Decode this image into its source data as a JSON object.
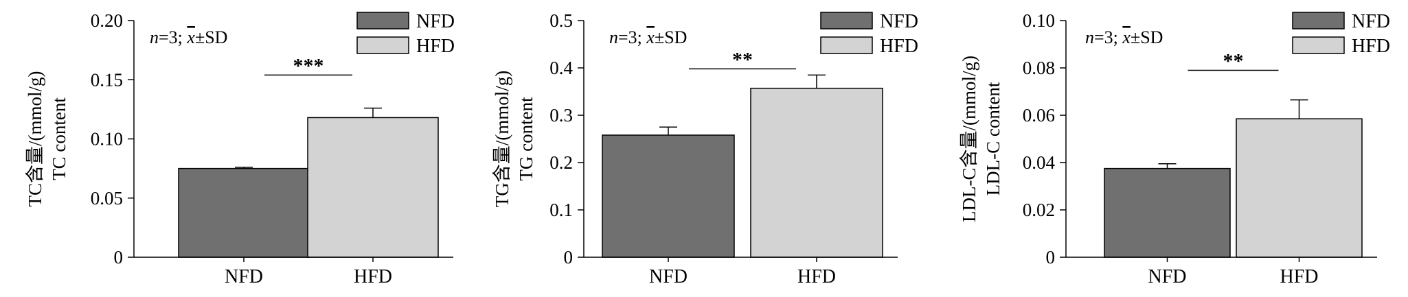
{
  "colors": {
    "NFD": "#707070",
    "HFD": "#d3d3d3",
    "axis": "#000000"
  },
  "chart_data": [
    {
      "type": "bar",
      "categories": [
        "NFD",
        "HFD"
      ],
      "values": [
        0.075,
        0.118
      ],
      "errors": [
        0.001,
        0.008
      ],
      "ylabel_cn": "TC含量/(mmol/g)",
      "ylabel_en": "TC content",
      "ylim": [
        0,
        0.2
      ],
      "yticks": [
        "0",
        "0.05",
        "0.10",
        "0.15",
        "0.20"
      ],
      "annotation_prefix": "n",
      "annotation_suffix": "=3; ",
      "annotation_stat": "x",
      "annotation_sd": "±SD",
      "significance": "***",
      "significance_y": 0.154,
      "legend": [
        "NFD",
        "HFD"
      ]
    },
    {
      "type": "bar",
      "categories": [
        "NFD",
        "HFD"
      ],
      "values": [
        0.258,
        0.357
      ],
      "errors": [
        0.017,
        0.028
      ],
      "ylabel_cn": "TG含量/(mmol/g)",
      "ylabel_en": "TG content",
      "ylim": [
        0,
        0.5
      ],
      "yticks": [
        "0",
        "0.1",
        "0.2",
        "0.3",
        "0.4",
        "0.5"
      ],
      "annotation_prefix": "n",
      "annotation_suffix": "=3; ",
      "annotation_stat": "x",
      "annotation_sd": "±SD",
      "significance": "**",
      "significance_y": 0.398,
      "legend": [
        "NFD",
        "HFD"
      ]
    },
    {
      "type": "bar",
      "categories": [
        "NFD",
        "HFD"
      ],
      "values": [
        0.0375,
        0.0585
      ],
      "errors": [
        0.002,
        0.008
      ],
      "ylabel_cn": "LDL-C含量/(mmol/g)",
      "ylabel_en": "LDL-C content",
      "ylim": [
        0,
        0.1
      ],
      "yticks": [
        "0",
        "0.02",
        "0.04",
        "0.06",
        "0.08",
        "0.10"
      ],
      "annotation_prefix": "n",
      "annotation_suffix": "=3; ",
      "annotation_stat": "x",
      "annotation_sd": "±SD",
      "significance": "**",
      "significance_y": 0.079,
      "legend": [
        "NFD",
        "HFD"
      ]
    }
  ]
}
